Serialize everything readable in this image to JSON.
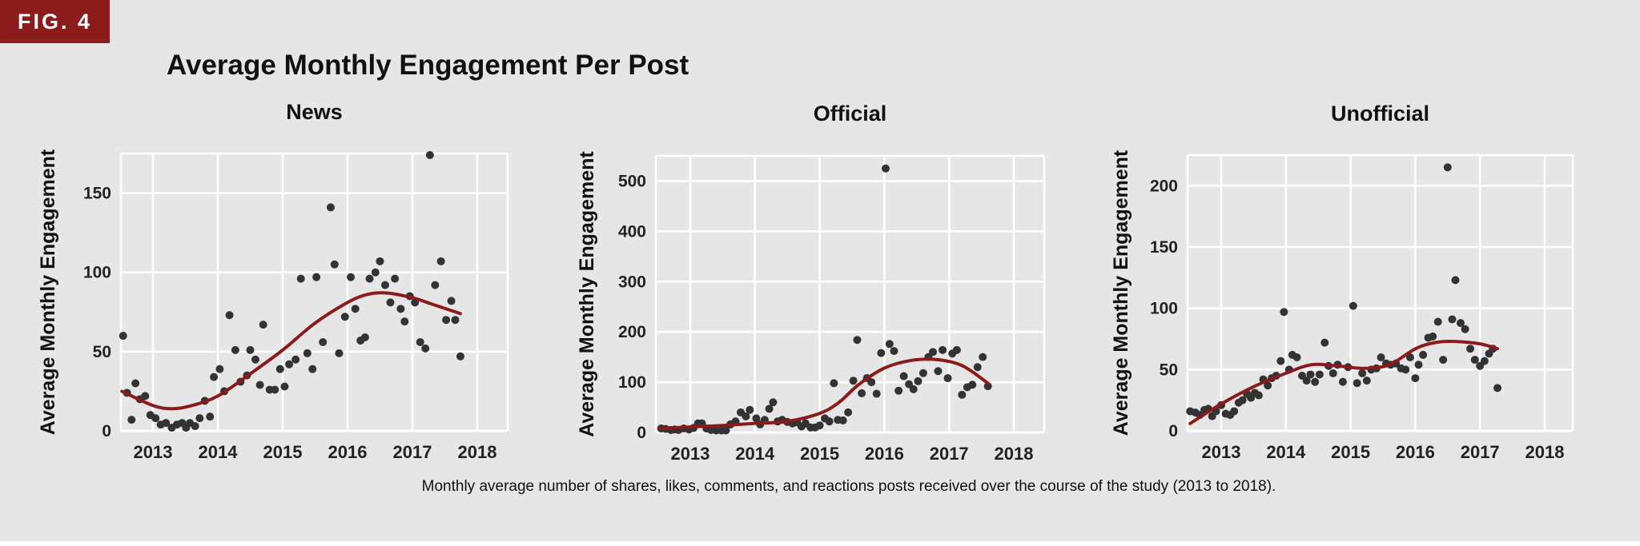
{
  "figure": {
    "label": "FIG. 4"
  },
  "title": "Average Monthly Engagement Per Post",
  "caption": "Monthly average number of shares, likes, comments, and reactions posts received over the course of the study (2013 to 2018).",
  "colors": {
    "badge": "#8c1c1c",
    "background": "#e6e6e6",
    "panel": "#e6e6e6",
    "grid": "#ffffff",
    "point": "#333333",
    "trend": "#8b1a1a"
  },
  "chart_data": [
    {
      "type": "scatter",
      "title": "News",
      "ylabel": "Average Monthly Engagement",
      "xlabel": "",
      "xlim": [
        2012.5,
        2018.5
      ],
      "ylim": [
        0,
        175
      ],
      "xticks": [
        2013,
        2014,
        2015,
        2016,
        2017,
        2018
      ],
      "yticks": [
        0,
        50,
        100,
        150
      ],
      "grid": true,
      "points": [
        [
          2012.54,
          60
        ],
        [
          2012.6,
          24
        ],
        [
          2012.67,
          7
        ],
        [
          2012.73,
          30
        ],
        [
          2012.8,
          20
        ],
        [
          2012.88,
          22
        ],
        [
          2012.96,
          10
        ],
        [
          2013.04,
          8
        ],
        [
          2013.12,
          4
        ],
        [
          2013.2,
          5
        ],
        [
          2013.29,
          2
        ],
        [
          2013.37,
          4
        ],
        [
          2013.45,
          5
        ],
        [
          2013.51,
          2
        ],
        [
          2013.57,
          5
        ],
        [
          2013.65,
          3
        ],
        [
          2013.72,
          8
        ],
        [
          2013.8,
          19
        ],
        [
          2013.88,
          9
        ],
        [
          2013.94,
          34
        ],
        [
          2014.03,
          39
        ],
        [
          2014.1,
          25
        ],
        [
          2014.18,
          73
        ],
        [
          2014.27,
          51
        ],
        [
          2014.35,
          31
        ],
        [
          2014.45,
          35
        ],
        [
          2014.5,
          51
        ],
        [
          2014.58,
          45
        ],
        [
          2014.65,
          29
        ],
        [
          2014.7,
          67
        ],
        [
          2014.8,
          26
        ],
        [
          2014.88,
          26
        ],
        [
          2014.96,
          39
        ],
        [
          2015.03,
          28
        ],
        [
          2015.1,
          42
        ],
        [
          2015.2,
          45
        ],
        [
          2015.28,
          96
        ],
        [
          2015.38,
          49
        ],
        [
          2015.46,
          39
        ],
        [
          2015.52,
          97
        ],
        [
          2015.62,
          56
        ],
        [
          2015.74,
          141
        ],
        [
          2015.8,
          105
        ],
        [
          2015.87,
          49
        ],
        [
          2015.96,
          72
        ],
        [
          2016.05,
          97
        ],
        [
          2016.12,
          77
        ],
        [
          2016.2,
          57
        ],
        [
          2016.27,
          59
        ],
        [
          2016.34,
          96
        ],
        [
          2016.43,
          100
        ],
        [
          2016.5,
          107
        ],
        [
          2016.58,
          92
        ],
        [
          2016.66,
          81
        ],
        [
          2016.73,
          96
        ],
        [
          2016.82,
          77
        ],
        [
          2016.88,
          69
        ],
        [
          2016.96,
          85
        ],
        [
          2017.04,
          81
        ],
        [
          2017.12,
          56
        ],
        [
          2017.2,
          52
        ],
        [
          2017.27,
          174
        ],
        [
          2017.35,
          92
        ],
        [
          2017.44,
          107
        ],
        [
          2017.52,
          70
        ],
        [
          2017.6,
          82
        ],
        [
          2017.66,
          70
        ],
        [
          2017.74,
          47
        ]
      ],
      "trend": [
        [
          2012.52,
          25
        ],
        [
          2013,
          16
        ],
        [
          2013.3,
          14
        ],
        [
          2013.6,
          16
        ],
        [
          2014,
          22
        ],
        [
          2014.5,
          36
        ],
        [
          2015,
          51
        ],
        [
          2015.5,
          68
        ],
        [
          2016,
          81
        ],
        [
          2016.3,
          86
        ],
        [
          2016.6,
          87
        ],
        [
          2017,
          84
        ],
        [
          2017.3,
          80
        ],
        [
          2017.74,
          74
        ]
      ]
    },
    {
      "type": "scatter",
      "title": "Official",
      "ylabel": "Average Monthly Engagement",
      "xlabel": "",
      "xlim": [
        2012.5,
        2018.5
      ],
      "ylim": [
        0,
        550
      ],
      "xticks": [
        2013,
        2014,
        2015,
        2016,
        2017,
        2018
      ],
      "yticks": [
        0,
        100,
        200,
        300,
        400,
        500
      ],
      "grid": true,
      "points": [
        [
          2012.55,
          8
        ],
        [
          2012.62,
          7
        ],
        [
          2012.7,
          5
        ],
        [
          2012.76,
          6
        ],
        [
          2012.82,
          5
        ],
        [
          2012.9,
          8
        ],
        [
          2012.98,
          6
        ],
        [
          2013.05,
          9
        ],
        [
          2013.12,
          18
        ],
        [
          2013.18,
          18
        ],
        [
          2013.25,
          8
        ],
        [
          2013.32,
          5
        ],
        [
          2013.4,
          4
        ],
        [
          2013.48,
          4
        ],
        [
          2013.55,
          4
        ],
        [
          2013.62,
          16
        ],
        [
          2013.7,
          22
        ],
        [
          2013.78,
          40
        ],
        [
          2013.86,
          32
        ],
        [
          2013.92,
          45
        ],
        [
          2014.02,
          28
        ],
        [
          2014.08,
          16
        ],
        [
          2014.15,
          25
        ],
        [
          2014.22,
          47
        ],
        [
          2014.28,
          60
        ],
        [
          2014.35,
          22
        ],
        [
          2014.42,
          25
        ],
        [
          2014.5,
          21
        ],
        [
          2014.58,
          18
        ],
        [
          2014.65,
          20
        ],
        [
          2014.72,
          12
        ],
        [
          2014.78,
          18
        ],
        [
          2014.86,
          10
        ],
        [
          2014.93,
          10
        ],
        [
          2015.0,
          14
        ],
        [
          2015.08,
          28
        ],
        [
          2015.15,
          22
        ],
        [
          2015.22,
          98
        ],
        [
          2015.28,
          25
        ],
        [
          2015.36,
          24
        ],
        [
          2015.44,
          40
        ],
        [
          2015.52,
          103
        ],
        [
          2015.58,
          184
        ],
        [
          2015.65,
          78
        ],
        [
          2015.73,
          108
        ],
        [
          2015.8,
          100
        ],
        [
          2015.88,
          77
        ],
        [
          2015.95,
          158
        ],
        [
          2016.02,
          525
        ],
        [
          2016.08,
          176
        ],
        [
          2016.15,
          162
        ],
        [
          2016.22,
          83
        ],
        [
          2016.3,
          112
        ],
        [
          2016.38,
          96
        ],
        [
          2016.45,
          86
        ],
        [
          2016.52,
          102
        ],
        [
          2016.6,
          118
        ],
        [
          2016.68,
          150
        ],
        [
          2016.75,
          160
        ],
        [
          2016.83,
          122
        ],
        [
          2016.9,
          164
        ],
        [
          2016.98,
          108
        ],
        [
          2017.05,
          157
        ],
        [
          2017.12,
          164
        ],
        [
          2017.2,
          75
        ],
        [
          2017.28,
          90
        ],
        [
          2017.36,
          95
        ],
        [
          2017.44,
          130
        ],
        [
          2017.52,
          150
        ],
        [
          2017.6,
          92
        ]
      ],
      "trend": [
        [
          2012.52,
          8
        ],
        [
          2013,
          11
        ],
        [
          2013.5,
          14
        ],
        [
          2014,
          18
        ],
        [
          2014.5,
          22
        ],
        [
          2015,
          38
        ],
        [
          2015.3,
          60
        ],
        [
          2015.6,
          95
        ],
        [
          2016,
          128
        ],
        [
          2016.4,
          143
        ],
        [
          2016.8,
          145
        ],
        [
          2017.2,
          133
        ],
        [
          2017.6,
          98
        ]
      ]
    },
    {
      "type": "scatter",
      "title": "Unofficial",
      "ylabel": "Average Monthly Engagement",
      "xlabel": "",
      "xlim": [
        2012.5,
        2018.5
      ],
      "ylim": [
        0,
        225
      ],
      "xticks": [
        2013,
        2014,
        2015,
        2016,
        2017,
        2018
      ],
      "yticks": [
        0,
        50,
        100,
        150,
        200
      ],
      "grid": true,
      "points": [
        [
          2012.52,
          16
        ],
        [
          2012.6,
          15
        ],
        [
          2012.67,
          13
        ],
        [
          2012.74,
          17
        ],
        [
          2012.8,
          18
        ],
        [
          2012.86,
          12
        ],
        [
          2012.92,
          16
        ],
        [
          2013.0,
          21
        ],
        [
          2013.07,
          14
        ],
        [
          2013.14,
          13
        ],
        [
          2013.2,
          16
        ],
        [
          2013.27,
          23
        ],
        [
          2013.33,
          25
        ],
        [
          2013.4,
          30
        ],
        [
          2013.46,
          27
        ],
        [
          2013.52,
          31
        ],
        [
          2013.58,
          29
        ],
        [
          2013.65,
          42
        ],
        [
          2013.72,
          37
        ],
        [
          2013.78,
          43
        ],
        [
          2013.85,
          45
        ],
        [
          2013.92,
          57
        ],
        [
          2013.97,
          97
        ],
        [
          2014.05,
          50
        ],
        [
          2014.1,
          62
        ],
        [
          2014.17,
          60
        ],
        [
          2014.25,
          45
        ],
        [
          2014.32,
          41
        ],
        [
          2014.38,
          46
        ],
        [
          2014.45,
          40
        ],
        [
          2014.52,
          46
        ],
        [
          2014.6,
          72
        ],
        [
          2014.66,
          53
        ],
        [
          2014.73,
          47
        ],
        [
          2014.8,
          54
        ],
        [
          2014.88,
          40
        ],
        [
          2014.96,
          52
        ],
        [
          2015.04,
          102
        ],
        [
          2015.1,
          39
        ],
        [
          2015.18,
          47
        ],
        [
          2015.25,
          41
        ],
        [
          2015.32,
          50
        ],
        [
          2015.4,
          51
        ],
        [
          2015.47,
          60
        ],
        [
          2015.55,
          55
        ],
        [
          2015.62,
          54
        ],
        [
          2015.7,
          55
        ],
        [
          2015.78,
          51
        ],
        [
          2015.85,
          50
        ],
        [
          2015.92,
          60
        ],
        [
          2016.0,
          43
        ],
        [
          2016.05,
          54
        ],
        [
          2016.12,
          62
        ],
        [
          2016.2,
          76
        ],
        [
          2016.27,
          77
        ],
        [
          2016.35,
          89
        ],
        [
          2016.43,
          58
        ],
        [
          2016.5,
          215
        ],
        [
          2016.57,
          91
        ],
        [
          2016.62,
          123
        ],
        [
          2016.7,
          88
        ],
        [
          2016.77,
          83
        ],
        [
          2016.85,
          67
        ],
        [
          2016.92,
          58
        ],
        [
          2017.0,
          53
        ],
        [
          2017.07,
          57
        ],
        [
          2017.14,
          63
        ],
        [
          2017.2,
          67
        ],
        [
          2017.27,
          35
        ]
      ],
      "trend": [
        [
          2012.52,
          6
        ],
        [
          2013,
          22
        ],
        [
          2013.5,
          36
        ],
        [
          2014,
          47
        ],
        [
          2014.4,
          54
        ],
        [
          2014.8,
          53
        ],
        [
          2015.2,
          51
        ],
        [
          2015.6,
          54
        ],
        [
          2016,
          67
        ],
        [
          2016.3,
          72
        ],
        [
          2016.6,
          73
        ],
        [
          2017,
          71
        ],
        [
          2017.27,
          67
        ]
      ]
    }
  ]
}
